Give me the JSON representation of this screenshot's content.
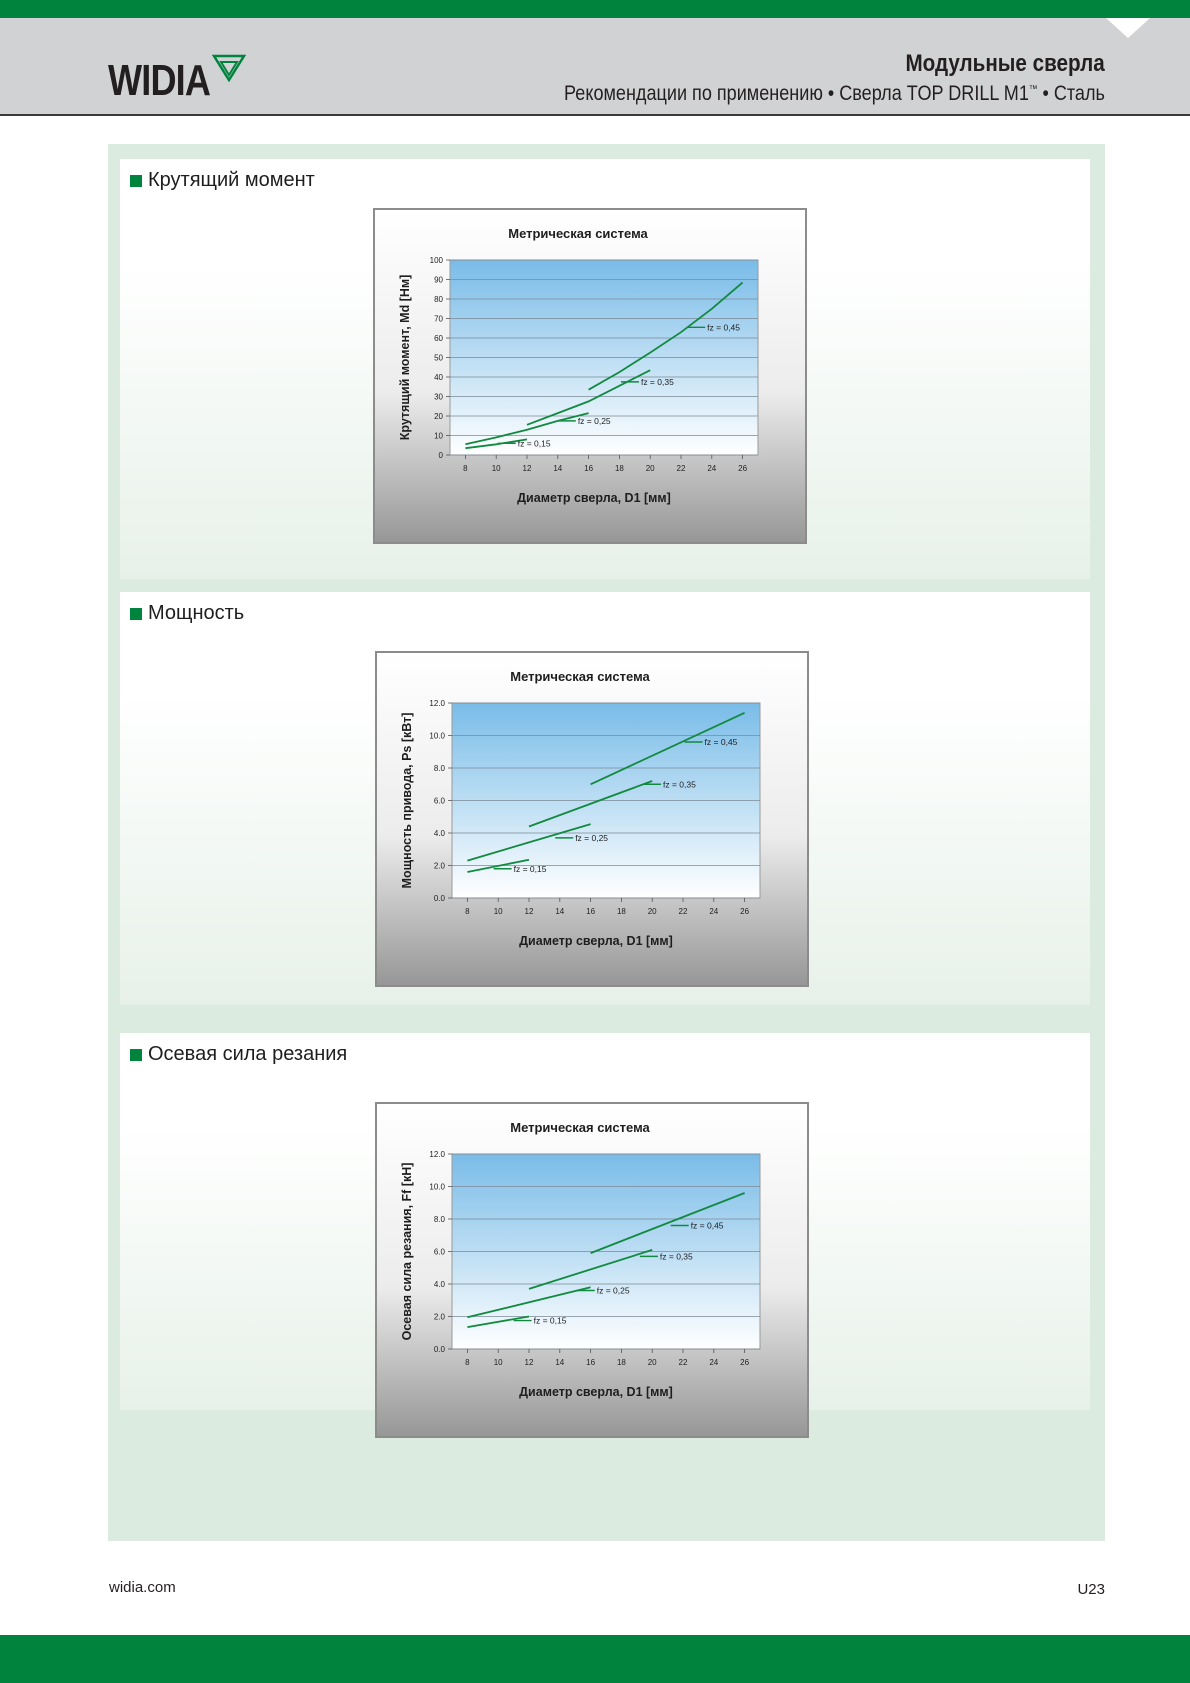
{
  "header": {
    "logo": "WIDIA",
    "title": "Модульные сверла",
    "subtitle_pre": "Рекомендации по применению • Сверла TOP DRILL M1",
    "subtitle_tm": "™",
    "subtitle_post": " • Сталь"
  },
  "sections": [
    {
      "title": "Крутящий момент"
    },
    {
      "title": "Мощность"
    },
    {
      "title": "Осевая сила резания"
    }
  ],
  "footer": {
    "url": "widia.com",
    "page": "U23"
  },
  "colors": {
    "brand_green": "#00843d",
    "line_green": "#118a3f",
    "plot_top": "#79bce8",
    "plot_bottom": "#ffffff"
  },
  "chart_data": [
    {
      "type": "line",
      "title": "Метрическая система",
      "xlabel": "Диаметр сверла, D1 [мм]",
      "ylabel": "Крутящий момент, Md [Нм]",
      "xticks": [
        8,
        10,
        12,
        14,
        16,
        18,
        20,
        22,
        24,
        26
      ],
      "xlim": [
        7,
        27
      ],
      "ylim": [
        0,
        100
      ],
      "yticks": [
        0,
        10,
        20,
        30,
        40,
        50,
        60,
        70,
        80,
        90,
        100
      ],
      "ytick_labels": [
        "0",
        "10",
        "20",
        "30",
        "40",
        "50",
        "60",
        "70",
        "80",
        "90",
        "100"
      ],
      "grid": true,
      "series": [
        {
          "name": "fz = 0,15",
          "x": [
            8,
            10,
            12
          ],
          "y": [
            3.5,
            5.5,
            8
          ],
          "label_x": 11.4,
          "label_y": 6
        },
        {
          "name": "fz = 0,25",
          "x": [
            8,
            10,
            12,
            14,
            16
          ],
          "y": [
            5.5,
            9,
            13,
            17.5,
            21.5
          ],
          "label_x": 15.3,
          "label_y": 17.5
        },
        {
          "name": "fz = 0,35",
          "x": [
            12,
            14,
            16,
            18,
            20
          ],
          "y": [
            15.5,
            21.5,
            27.5,
            35.5,
            43.5
          ],
          "label_x": 19.4,
          "label_y": 37.5
        },
        {
          "name": "fz = 0,45",
          "x": [
            16,
            18,
            20,
            22,
            24,
            26
          ],
          "y": [
            33.5,
            42.5,
            52.5,
            63,
            75,
            88.5
          ],
          "label_x": 23.7,
          "label_y": 65.5
        }
      ]
    },
    {
      "type": "line",
      "title": "Метрическая система",
      "xlabel": "Диаметр сверла, D1 [мм]",
      "ylabel": "Мощность привода, Ps [кВт]",
      "xticks": [
        8,
        10,
        12,
        14,
        16,
        18,
        20,
        22,
        24,
        26
      ],
      "xlim": [
        7,
        27
      ],
      "ylim": [
        0,
        12
      ],
      "yticks": [
        0,
        2,
        4,
        6,
        8,
        10,
        12
      ],
      "ytick_labels": [
        "0.0",
        "2.0",
        "4.0",
        "6.0",
        "8.0",
        "10.0",
        "12.0"
      ],
      "grid": true,
      "series": [
        {
          "name": "fz = 0,15",
          "x": [
            8,
            12
          ],
          "y": [
            1.6,
            2.35
          ],
          "label_x": 11.0,
          "label_y": 1.8
        },
        {
          "name": "fz = 0,25",
          "x": [
            8,
            16
          ],
          "y": [
            2.3,
            4.55
          ],
          "label_x": 15.0,
          "label_y": 3.7
        },
        {
          "name": "fz = 0,35",
          "x": [
            12,
            20
          ],
          "y": [
            4.4,
            7.2
          ],
          "label_x": 20.7,
          "label_y": 7.0
        },
        {
          "name": "fz = 0,45",
          "x": [
            16,
            26
          ],
          "y": [
            7.0,
            11.4
          ],
          "label_x": 23.4,
          "label_y": 9.6
        }
      ]
    },
    {
      "type": "line",
      "title": "Метрическая система",
      "xlabel": "Диаметр сверла, D1 [мм]",
      "ylabel": "Осевая сила резания, Ff [кН]",
      "xticks": [
        8,
        10,
        12,
        14,
        16,
        18,
        20,
        22,
        24,
        26
      ],
      "xlim": [
        7,
        27
      ],
      "ylim": [
        0,
        12
      ],
      "yticks": [
        0,
        2,
        4,
        6,
        8,
        10,
        12
      ],
      "ytick_labels": [
        "0.0",
        "2.0",
        "4.0",
        "6.0",
        "8.0",
        "10.0",
        "12.0"
      ],
      "grid": true,
      "series": [
        {
          "name": "fz = 0,15",
          "x": [
            8,
            12
          ],
          "y": [
            1.35,
            2.0
          ],
          "label_x": 12.3,
          "label_y": 1.75
        },
        {
          "name": "fz = 0,25",
          "x": [
            8,
            16
          ],
          "y": [
            1.95,
            3.8
          ],
          "label_x": 16.4,
          "label_y": 3.6
        },
        {
          "name": "fz = 0,35",
          "x": [
            12,
            20
          ],
          "y": [
            3.7,
            6.1
          ],
          "label_x": 20.5,
          "label_y": 5.7
        },
        {
          "name": "fz = 0,45",
          "x": [
            16,
            26
          ],
          "y": [
            5.9,
            9.6
          ],
          "label_x": 22.5,
          "label_y": 7.6
        }
      ]
    }
  ]
}
